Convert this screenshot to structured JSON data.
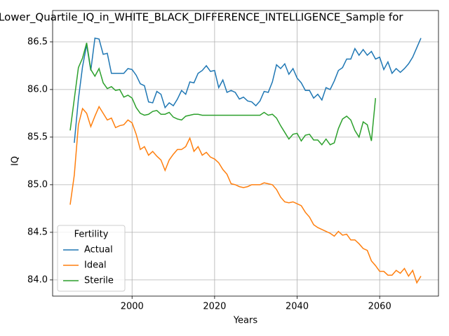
{
  "chart_data": {
    "type": "line",
    "title": "Lower_Quartile_IQ_in_WHITE_BLACK_DIFFERENCE_INTELLIGENCE_Sample for",
    "xlabel": "Years",
    "ylabel": "IQ",
    "legend_title": "Fertility",
    "legend_loc": "lower left",
    "grid": true,
    "x": [
      1985,
      1986,
      1987,
      1988,
      1989,
      1990,
      1991,
      1992,
      1993,
      1994,
      1995,
      1996,
      1997,
      1998,
      1999,
      2000,
      2001,
      2002,
      2003,
      2004,
      2005,
      2006,
      2007,
      2008,
      2009,
      2010,
      2011,
      2012,
      2013,
      2014,
      2015,
      2016,
      2017,
      2018,
      2019,
      2020,
      2021,
      2022,
      2023,
      2024,
      2025,
      2026,
      2027,
      2028,
      2029,
      2030,
      2031,
      2032,
      2033,
      2034,
      2035,
      2036,
      2037,
      2038,
      2039,
      2040,
      2041,
      2042,
      2043,
      2044,
      2045,
      2046,
      2047,
      2048,
      2049,
      2050,
      2051,
      2052,
      2053,
      2054,
      2055,
      2056,
      2057,
      2058,
      2059,
      2060,
      2061,
      2062,
      2063,
      2064,
      2065,
      2066,
      2067,
      2068,
      2069,
      2070
    ],
    "series": [
      {
        "name": "Actual",
        "color": "#1f77b4",
        "values": [
          null,
          85.44,
          85.9,
          86.24,
          86.47,
          86.2,
          86.54,
          86.53,
          86.37,
          86.38,
          86.17,
          86.17,
          86.17,
          86.17,
          86.22,
          86.21,
          86.15,
          86.06,
          86.04,
          85.87,
          85.86,
          85.98,
          85.95,
          85.81,
          85.86,
          85.83,
          85.9,
          85.99,
          85.95,
          86.08,
          86.07,
          86.17,
          86.2,
          86.25,
          86.19,
          86.2,
          86.02,
          86.1,
          85.97,
          85.99,
          85.97,
          85.9,
          85.92,
          85.88,
          85.87,
          85.83,
          85.88,
          85.98,
          85.97,
          86.08,
          86.26,
          86.22,
          86.27,
          86.16,
          86.22,
          86.12,
          86.07,
          85.99,
          85.99,
          85.91,
          85.95,
          85.89,
          86.02,
          86.0,
          86.09,
          86.2,
          86.23,
          86.32,
          86.32,
          86.43,
          86.36,
          86.42,
          86.36,
          86.4,
          86.32,
          86.34,
          86.21,
          86.29,
          86.17,
          86.22,
          86.18,
          86.22,
          86.27,
          86.34,
          86.44,
          86.54
        ]
      },
      {
        "name": "Ideal",
        "color": "#ff7f0e",
        "values": [
          84.79,
          85.1,
          85.63,
          85.8,
          85.75,
          85.61,
          85.72,
          85.82,
          85.75,
          85.68,
          85.7,
          85.6,
          85.62,
          85.63,
          85.68,
          85.65,
          85.53,
          85.37,
          85.4,
          85.31,
          85.35,
          85.3,
          85.26,
          85.15,
          85.26,
          85.32,
          85.37,
          85.37,
          85.4,
          85.49,
          85.35,
          85.4,
          85.31,
          85.34,
          85.29,
          85.27,
          85.23,
          85.16,
          85.11,
          85.01,
          85.0,
          84.98,
          84.97,
          84.98,
          85.0,
          85.0,
          85.0,
          85.02,
          85.01,
          85.0,
          84.95,
          84.87,
          84.82,
          84.81,
          84.82,
          84.8,
          84.78,
          84.71,
          84.66,
          84.58,
          84.55,
          84.53,
          84.51,
          84.49,
          84.46,
          84.51,
          84.47,
          84.48,
          84.42,
          84.42,
          84.38,
          84.33,
          84.31,
          84.2,
          84.15,
          84.09,
          84.09,
          84.05,
          84.05,
          84.1,
          84.07,
          84.12,
          84.04,
          84.1,
          83.97,
          84.04
        ]
      },
      {
        "name": "Sterile",
        "color": "#2ca02c",
        "values": [
          85.57,
          85.9,
          86.23,
          86.33,
          86.49,
          86.21,
          86.14,
          86.22,
          86.07,
          86.01,
          86.03,
          85.99,
          86.0,
          85.92,
          85.94,
          85.91,
          85.81,
          85.75,
          85.73,
          85.74,
          85.77,
          85.78,
          85.74,
          85.74,
          85.76,
          85.71,
          85.69,
          85.68,
          85.72,
          85.73,
          85.74,
          85.74,
          85.73,
          85.73,
          85.73,
          85.73,
          85.73,
          85.73,
          85.73,
          85.73,
          85.73,
          85.73,
          85.73,
          85.73,
          85.73,
          85.73,
          85.73,
          85.76,
          85.73,
          85.74,
          85.7,
          85.62,
          85.55,
          85.48,
          85.53,
          85.54,
          85.46,
          85.52,
          85.53,
          85.47,
          85.47,
          85.42,
          85.48,
          85.42,
          85.44,
          85.59,
          85.69,
          85.72,
          85.68,
          85.57,
          85.5,
          85.66,
          85.63,
          85.46,
          85.91,
          null,
          null,
          null,
          null,
          null,
          null,
          null,
          null,
          null,
          null,
          null
        ]
      }
    ],
    "xlim": [
      1980.75,
      2074.25
    ],
    "xticks": [
      2000,
      2020,
      2040,
      2060
    ],
    "ylim": [
      83.83,
      86.83
    ],
    "yticks": [
      {
        "value": 84,
        "label": "84.0"
      },
      84.5,
      {
        "value": 85,
        "label": "85.0"
      },
      85.5,
      {
        "value": 86,
        "label": "86.0"
      },
      86.5
    ]
  }
}
